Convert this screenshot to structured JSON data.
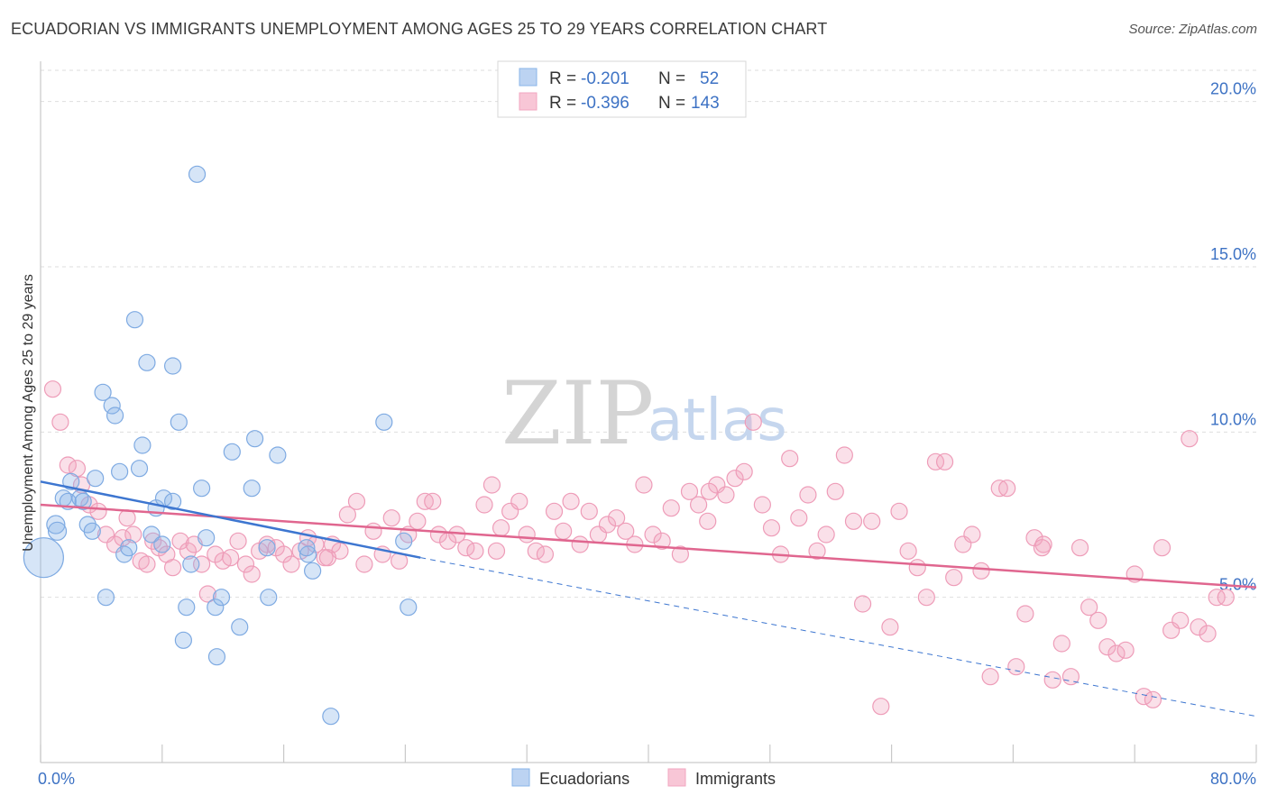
{
  "header": {
    "title": "ECUADORIAN VS IMMIGRANTS UNEMPLOYMENT AMONG AGES 25 TO 29 YEARS CORRELATION CHART",
    "source": "Source: ZipAtlas.com"
  },
  "watermark": {
    "zip": "ZIP",
    "atlas": "atlas"
  },
  "legend": {
    "rows": [
      {
        "r_label": "R = ",
        "r_value": "-0.201",
        "n_label": "N = ",
        "n_value": "52"
      },
      {
        "r_label": "R = ",
        "r_value": "-0.396",
        "n_label": "N = ",
        "n_value": "143"
      }
    ]
  },
  "bottom_legend": {
    "series1": "Ecuadorians",
    "series2": "Immigrants"
  },
  "chart_data": {
    "type": "scatter",
    "title": "ECUADORIAN VS IMMIGRANTS UNEMPLOYMENT AMONG AGES 25 TO 29 YEARS CORRELATION CHART",
    "xlabel": "",
    "ylabel": "Unemployment Among Ages 25 to 29 years",
    "xlim": [
      0,
      80
    ],
    "ylim": [
      0,
      21
    ],
    "x_tick_labels": [
      "0.0%",
      "80.0%"
    ],
    "y_ticks": [
      5,
      10,
      15,
      20
    ],
    "y_tick_labels": [
      "5.0%",
      "10.0%",
      "15.0%",
      "20.0%"
    ],
    "colors": {
      "ecuadorians": "#8ab4e8",
      "ecuadorians_line": "#3d76d0",
      "immigrants": "#f2a7c0",
      "immigrants_line": "#e0668f"
    },
    "series": [
      {
        "name": "Ecuadorians",
        "R": -0.201,
        "N": 52,
        "trend": {
          "x0": 0,
          "y0": 8.5,
          "x1": 25,
          "y1": 6.2,
          "dash_x1": 80,
          "dash_y1": 1.4
        },
        "points": [
          [
            0.2,
            6.2,
            22
          ],
          [
            1.0,
            7.2,
            10
          ],
          [
            1.1,
            7.0,
            10
          ],
          [
            1.5,
            8.0,
            9
          ],
          [
            1.8,
            7.9,
            9
          ],
          [
            2.0,
            8.5,
            9
          ],
          [
            2.6,
            8.0,
            9
          ],
          [
            2.8,
            7.9,
            9
          ],
          [
            3.1,
            7.2,
            9
          ],
          [
            3.4,
            7.0,
            9
          ],
          [
            3.6,
            8.6,
            9
          ],
          [
            4.1,
            11.2,
            9
          ],
          [
            4.3,
            5.0,
            9
          ],
          [
            4.7,
            10.8,
            9
          ],
          [
            4.9,
            10.5,
            9
          ],
          [
            5.2,
            8.8,
            9
          ],
          [
            5.5,
            6.3,
            9
          ],
          [
            5.8,
            6.5,
            9
          ],
          [
            6.2,
            13.4,
            9
          ],
          [
            6.5,
            8.9,
            9
          ],
          [
            6.7,
            9.6,
            9
          ],
          [
            7.0,
            12.1,
            9
          ],
          [
            7.3,
            6.9,
            9
          ],
          [
            7.6,
            7.7,
            9
          ],
          [
            8.0,
            6.6,
            9
          ],
          [
            8.1,
            8.0,
            9
          ],
          [
            8.7,
            12.0,
            9
          ],
          [
            8.7,
            7.9,
            9
          ],
          [
            9.1,
            10.3,
            9
          ],
          [
            9.4,
            3.7,
            9
          ],
          [
            9.6,
            4.7,
            9
          ],
          [
            9.9,
            6.0,
            9
          ],
          [
            10.3,
            17.8,
            9
          ],
          [
            10.6,
            8.3,
            9
          ],
          [
            10.9,
            6.8,
            9
          ],
          [
            11.5,
            4.7,
            9
          ],
          [
            11.6,
            3.2,
            9
          ],
          [
            11.9,
            5.0,
            9
          ],
          [
            13.1,
            4.1,
            9
          ],
          [
            13.9,
            8.3,
            9
          ],
          [
            14.1,
            9.8,
            9
          ],
          [
            15.0,
            5.0,
            9
          ],
          [
            15.6,
            9.3,
            9
          ],
          [
            12.6,
            9.4,
            9
          ],
          [
            17.6,
            6.3,
            9
          ],
          [
            17.9,
            5.8,
            9
          ],
          [
            19.1,
            1.4,
            9
          ],
          [
            22.6,
            10.3,
            9
          ],
          [
            23.9,
            6.7,
            9
          ],
          [
            24.2,
            4.7,
            9
          ],
          [
            17.5,
            6.5,
            9
          ],
          [
            14.9,
            6.5,
            9
          ]
        ]
      },
      {
        "name": "Immigrants",
        "R": -0.396,
        "N": 143,
        "trend": {
          "x0": 0,
          "y0": 7.8,
          "x1": 80,
          "y1": 5.3
        },
        "points": [
          [
            0.8,
            11.3,
            9
          ],
          [
            1.3,
            10.3,
            9
          ],
          [
            1.8,
            9.0,
            9
          ],
          [
            2.4,
            8.9,
            9
          ],
          [
            2.7,
            8.4,
            9
          ],
          [
            3.2,
            7.8,
            9
          ],
          [
            3.8,
            7.6,
            9
          ],
          [
            4.3,
            6.9,
            9
          ],
          [
            4.9,
            6.6,
            9
          ],
          [
            5.4,
            6.8,
            9
          ],
          [
            5.7,
            7.4,
            9
          ],
          [
            6.1,
            6.9,
            9
          ],
          [
            6.6,
            6.1,
            9
          ],
          [
            7.0,
            6.0,
            9
          ],
          [
            7.4,
            6.7,
            9
          ],
          [
            7.8,
            6.5,
            9
          ],
          [
            8.3,
            6.3,
            9
          ],
          [
            8.7,
            5.9,
            9
          ],
          [
            9.2,
            6.7,
            9
          ],
          [
            9.7,
            6.4,
            9
          ],
          [
            10.1,
            6.6,
            9
          ],
          [
            10.6,
            6.0,
            9
          ],
          [
            11.0,
            5.1,
            9
          ],
          [
            11.5,
            6.3,
            9
          ],
          [
            12.0,
            6.1,
            9
          ],
          [
            12.5,
            6.2,
            9
          ],
          [
            13.0,
            6.7,
            9
          ],
          [
            13.5,
            6.0,
            9
          ],
          [
            13.9,
            5.7,
            9
          ],
          [
            14.4,
            6.4,
            9
          ],
          [
            14.9,
            6.6,
            9
          ],
          [
            15.5,
            6.5,
            9
          ],
          [
            16.0,
            6.3,
            9
          ],
          [
            16.5,
            6.0,
            9
          ],
          [
            17.1,
            6.4,
            9
          ],
          [
            17.6,
            6.8,
            9
          ],
          [
            18.1,
            6.6,
            9
          ],
          [
            18.7,
            6.2,
            9
          ],
          [
            19.2,
            6.6,
            9
          ],
          [
            19.7,
            6.4,
            9
          ],
          [
            20.2,
            7.5,
            9
          ],
          [
            20.8,
            7.9,
            9
          ],
          [
            21.3,
            6.0,
            9
          ],
          [
            21.9,
            7.0,
            9
          ],
          [
            22.5,
            6.3,
            9
          ],
          [
            23.1,
            7.4,
            9
          ],
          [
            23.6,
            6.1,
            9
          ],
          [
            24.2,
            6.9,
            9
          ],
          [
            24.8,
            7.3,
            9
          ],
          [
            25.3,
            7.9,
            9
          ],
          [
            25.8,
            7.9,
            9
          ],
          [
            26.2,
            6.9,
            9
          ],
          [
            26.8,
            6.7,
            9
          ],
          [
            27.4,
            6.9,
            9
          ],
          [
            28.0,
            6.5,
            9
          ],
          [
            28.6,
            6.4,
            9
          ],
          [
            29.2,
            7.8,
            9
          ],
          [
            29.7,
            8.4,
            9
          ],
          [
            30.3,
            7.1,
            9
          ],
          [
            30.9,
            7.6,
            9
          ],
          [
            31.5,
            7.9,
            9
          ],
          [
            32.0,
            6.9,
            9
          ],
          [
            32.6,
            6.4,
            9
          ],
          [
            33.2,
            6.3,
            9
          ],
          [
            33.8,
            7.6,
            9
          ],
          [
            34.4,
            7.0,
            9
          ],
          [
            34.9,
            7.9,
            9
          ],
          [
            35.5,
            6.6,
            9
          ],
          [
            36.1,
            7.6,
            9
          ],
          [
            36.7,
            6.9,
            9
          ],
          [
            37.3,
            7.2,
            9
          ],
          [
            37.9,
            7.4,
            9
          ],
          [
            38.5,
            7.0,
            9
          ],
          [
            39.1,
            6.6,
            9
          ],
          [
            39.7,
            8.4,
            9
          ],
          [
            40.3,
            6.9,
            9
          ],
          [
            40.9,
            6.7,
            9
          ],
          [
            41.5,
            7.7,
            9
          ],
          [
            42.1,
            6.3,
            9
          ],
          [
            42.7,
            8.2,
            9
          ],
          [
            43.3,
            7.8,
            9
          ],
          [
            43.9,
            7.3,
            9
          ],
          [
            44.5,
            8.4,
            9
          ],
          [
            45.1,
            8.1,
            9
          ],
          [
            45.7,
            8.6,
            9
          ],
          [
            46.3,
            8.8,
            9
          ],
          [
            46.9,
            10.3,
            9
          ],
          [
            47.5,
            7.8,
            9
          ],
          [
            48.1,
            7.1,
            9
          ],
          [
            48.7,
            6.3,
            9
          ],
          [
            49.3,
            9.2,
            9
          ],
          [
            49.9,
            7.4,
            9
          ],
          [
            50.5,
            8.1,
            9
          ],
          [
            51.1,
            6.4,
            9
          ],
          [
            51.7,
            6.9,
            9
          ],
          [
            52.3,
            8.2,
            9
          ],
          [
            52.9,
            9.3,
            9
          ],
          [
            53.5,
            7.3,
            9
          ],
          [
            54.1,
            4.8,
            9
          ],
          [
            54.7,
            7.3,
            9
          ],
          [
            55.3,
            1.7,
            9
          ],
          [
            55.9,
            4.1,
            9
          ],
          [
            56.5,
            7.6,
            9
          ],
          [
            57.1,
            6.4,
            9
          ],
          [
            57.7,
            5.9,
            9
          ],
          [
            58.3,
            5.0,
            9
          ],
          [
            58.9,
            9.1,
            9
          ],
          [
            59.5,
            9.1,
            9
          ],
          [
            60.1,
            5.6,
            9
          ],
          [
            60.7,
            6.6,
            9
          ],
          [
            61.3,
            6.9,
            9
          ],
          [
            61.9,
            5.8,
            9
          ],
          [
            62.5,
            2.6,
            9
          ],
          [
            63.1,
            8.3,
            9
          ],
          [
            63.6,
            8.3,
            9
          ],
          [
            64.2,
            2.9,
            9
          ],
          [
            64.8,
            4.5,
            9
          ],
          [
            65.4,
            6.8,
            9
          ],
          [
            66.0,
            6.6,
            9
          ],
          [
            66.6,
            2.5,
            9
          ],
          [
            67.2,
            3.6,
            9
          ],
          [
            67.8,
            2.6,
            9
          ],
          [
            68.4,
            6.5,
            9
          ],
          [
            69.0,
            4.7,
            9
          ],
          [
            69.6,
            4.3,
            9
          ],
          [
            70.2,
            3.5,
            9
          ],
          [
            70.8,
            3.3,
            9
          ],
          [
            71.4,
            3.4,
            9
          ],
          [
            72.0,
            5.7,
            9
          ],
          [
            72.6,
            2.0,
            9
          ],
          [
            73.2,
            1.9,
            9
          ],
          [
            73.8,
            6.5,
            9
          ],
          [
            74.4,
            4.0,
            9
          ],
          [
            75.0,
            4.3,
            9
          ],
          [
            75.6,
            9.8,
            9
          ],
          [
            76.2,
            4.1,
            9
          ],
          [
            76.8,
            3.9,
            9
          ],
          [
            77.4,
            5.0,
            9
          ],
          [
            78.0,
            5.0,
            9
          ],
          [
            65.9,
            6.5,
            9
          ],
          [
            44.0,
            8.2,
            9
          ],
          [
            30.0,
            6.4,
            9
          ],
          [
            18.9,
            6.2,
            9
          ]
        ]
      }
    ]
  }
}
